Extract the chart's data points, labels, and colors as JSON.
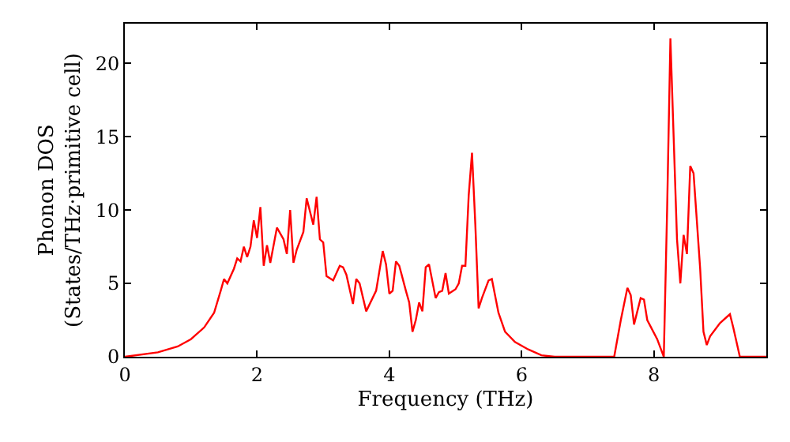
{
  "chart_data": {
    "type": "line",
    "xlabel": "Frequency (THz)",
    "ylabel": "Phonon DOS\n(States/THz·primitive cell)",
    "xlim": [
      0,
      9.7
    ],
    "ylim": [
      0,
      22.7
    ],
    "xticks": [
      0,
      2,
      4,
      6,
      8
    ],
    "yticks": [
      0,
      5,
      10,
      15,
      20
    ],
    "legend": false,
    "marker": "none",
    "line_style": "solid",
    "series": [
      {
        "color": "#ff0000",
        "x": [
          0,
          0.5,
          0.8,
          1.0,
          1.2,
          1.35,
          1.45,
          1.5,
          1.55,
          1.65,
          1.7,
          1.75,
          1.8,
          1.85,
          1.9,
          1.95,
          2.0,
          2.05,
          2.1,
          2.15,
          2.2,
          2.3,
          2.4,
          2.45,
          2.5,
          2.55,
          2.6,
          2.7,
          2.75,
          2.85,
          2.9,
          2.95,
          3.0,
          3.05,
          3.15,
          3.25,
          3.3,
          3.35,
          3.45,
          3.5,
          3.55,
          3.65,
          3.8,
          3.9,
          3.95,
          4.0,
          4.05,
          4.1,
          4.15,
          4.25,
          4.3,
          4.35,
          4.4,
          4.45,
          4.5,
          4.55,
          4.6,
          4.7,
          4.75,
          4.8,
          4.85,
          4.9,
          5.0,
          5.05,
          5.1,
          5.15,
          5.2,
          5.25,
          5.3,
          5.35,
          5.4,
          5.5,
          5.55,
          5.65,
          5.75,
          5.9,
          6.1,
          6.3,
          6.5,
          7.4,
          7.5,
          7.6,
          7.65,
          7.7,
          7.8,
          7.85,
          7.9,
          8.05,
          8.1,
          8.15,
          8.2,
          8.25,
          8.35,
          8.4,
          8.45,
          8.5,
          8.55,
          8.6,
          8.7,
          8.75,
          8.8,
          8.85,
          9.0,
          9.15,
          9.2,
          9.3,
          9.7
        ],
        "values": [
          0,
          0.3,
          0.7,
          1.2,
          2.0,
          3.0,
          4.5,
          5.3,
          5.0,
          6.0,
          6.7,
          6.5,
          7.5,
          6.8,
          7.5,
          9.3,
          8.1,
          10.2,
          6.2,
          7.6,
          6.4,
          8.8,
          8.0,
          7.0,
          10.0,
          6.4,
          7.3,
          8.5,
          10.8,
          9.0,
          10.9,
          8.0,
          7.8,
          5.5,
          5.2,
          6.2,
          6.1,
          5.6,
          3.6,
          5.3,
          5.0,
          3.1,
          4.5,
          7.2,
          6.3,
          4.3,
          4.5,
          6.5,
          6.2,
          4.5,
          3.7,
          1.7,
          2.5,
          3.7,
          3.1,
          6.1,
          6.3,
          4.0,
          4.4,
          4.5,
          5.7,
          4.3,
          4.6,
          5.0,
          6.2,
          6.2,
          11.0,
          13.9,
          9.0,
          3.3,
          4.0,
          5.2,
          5.3,
          3.0,
          1.7,
          1.0,
          0.5,
          0.1,
          0,
          0,
          2.5,
          4.7,
          4.2,
          2.2,
          4.0,
          3.9,
          2.5,
          1.2,
          0.6,
          0,
          10,
          21.7,
          8,
          5.0,
          8.3,
          7.0,
          13.0,
          12.5,
          6.0,
          1.7,
          0.8,
          1.4,
          2.3,
          2.9,
          2.0,
          0,
          0
        ]
      }
    ]
  }
}
